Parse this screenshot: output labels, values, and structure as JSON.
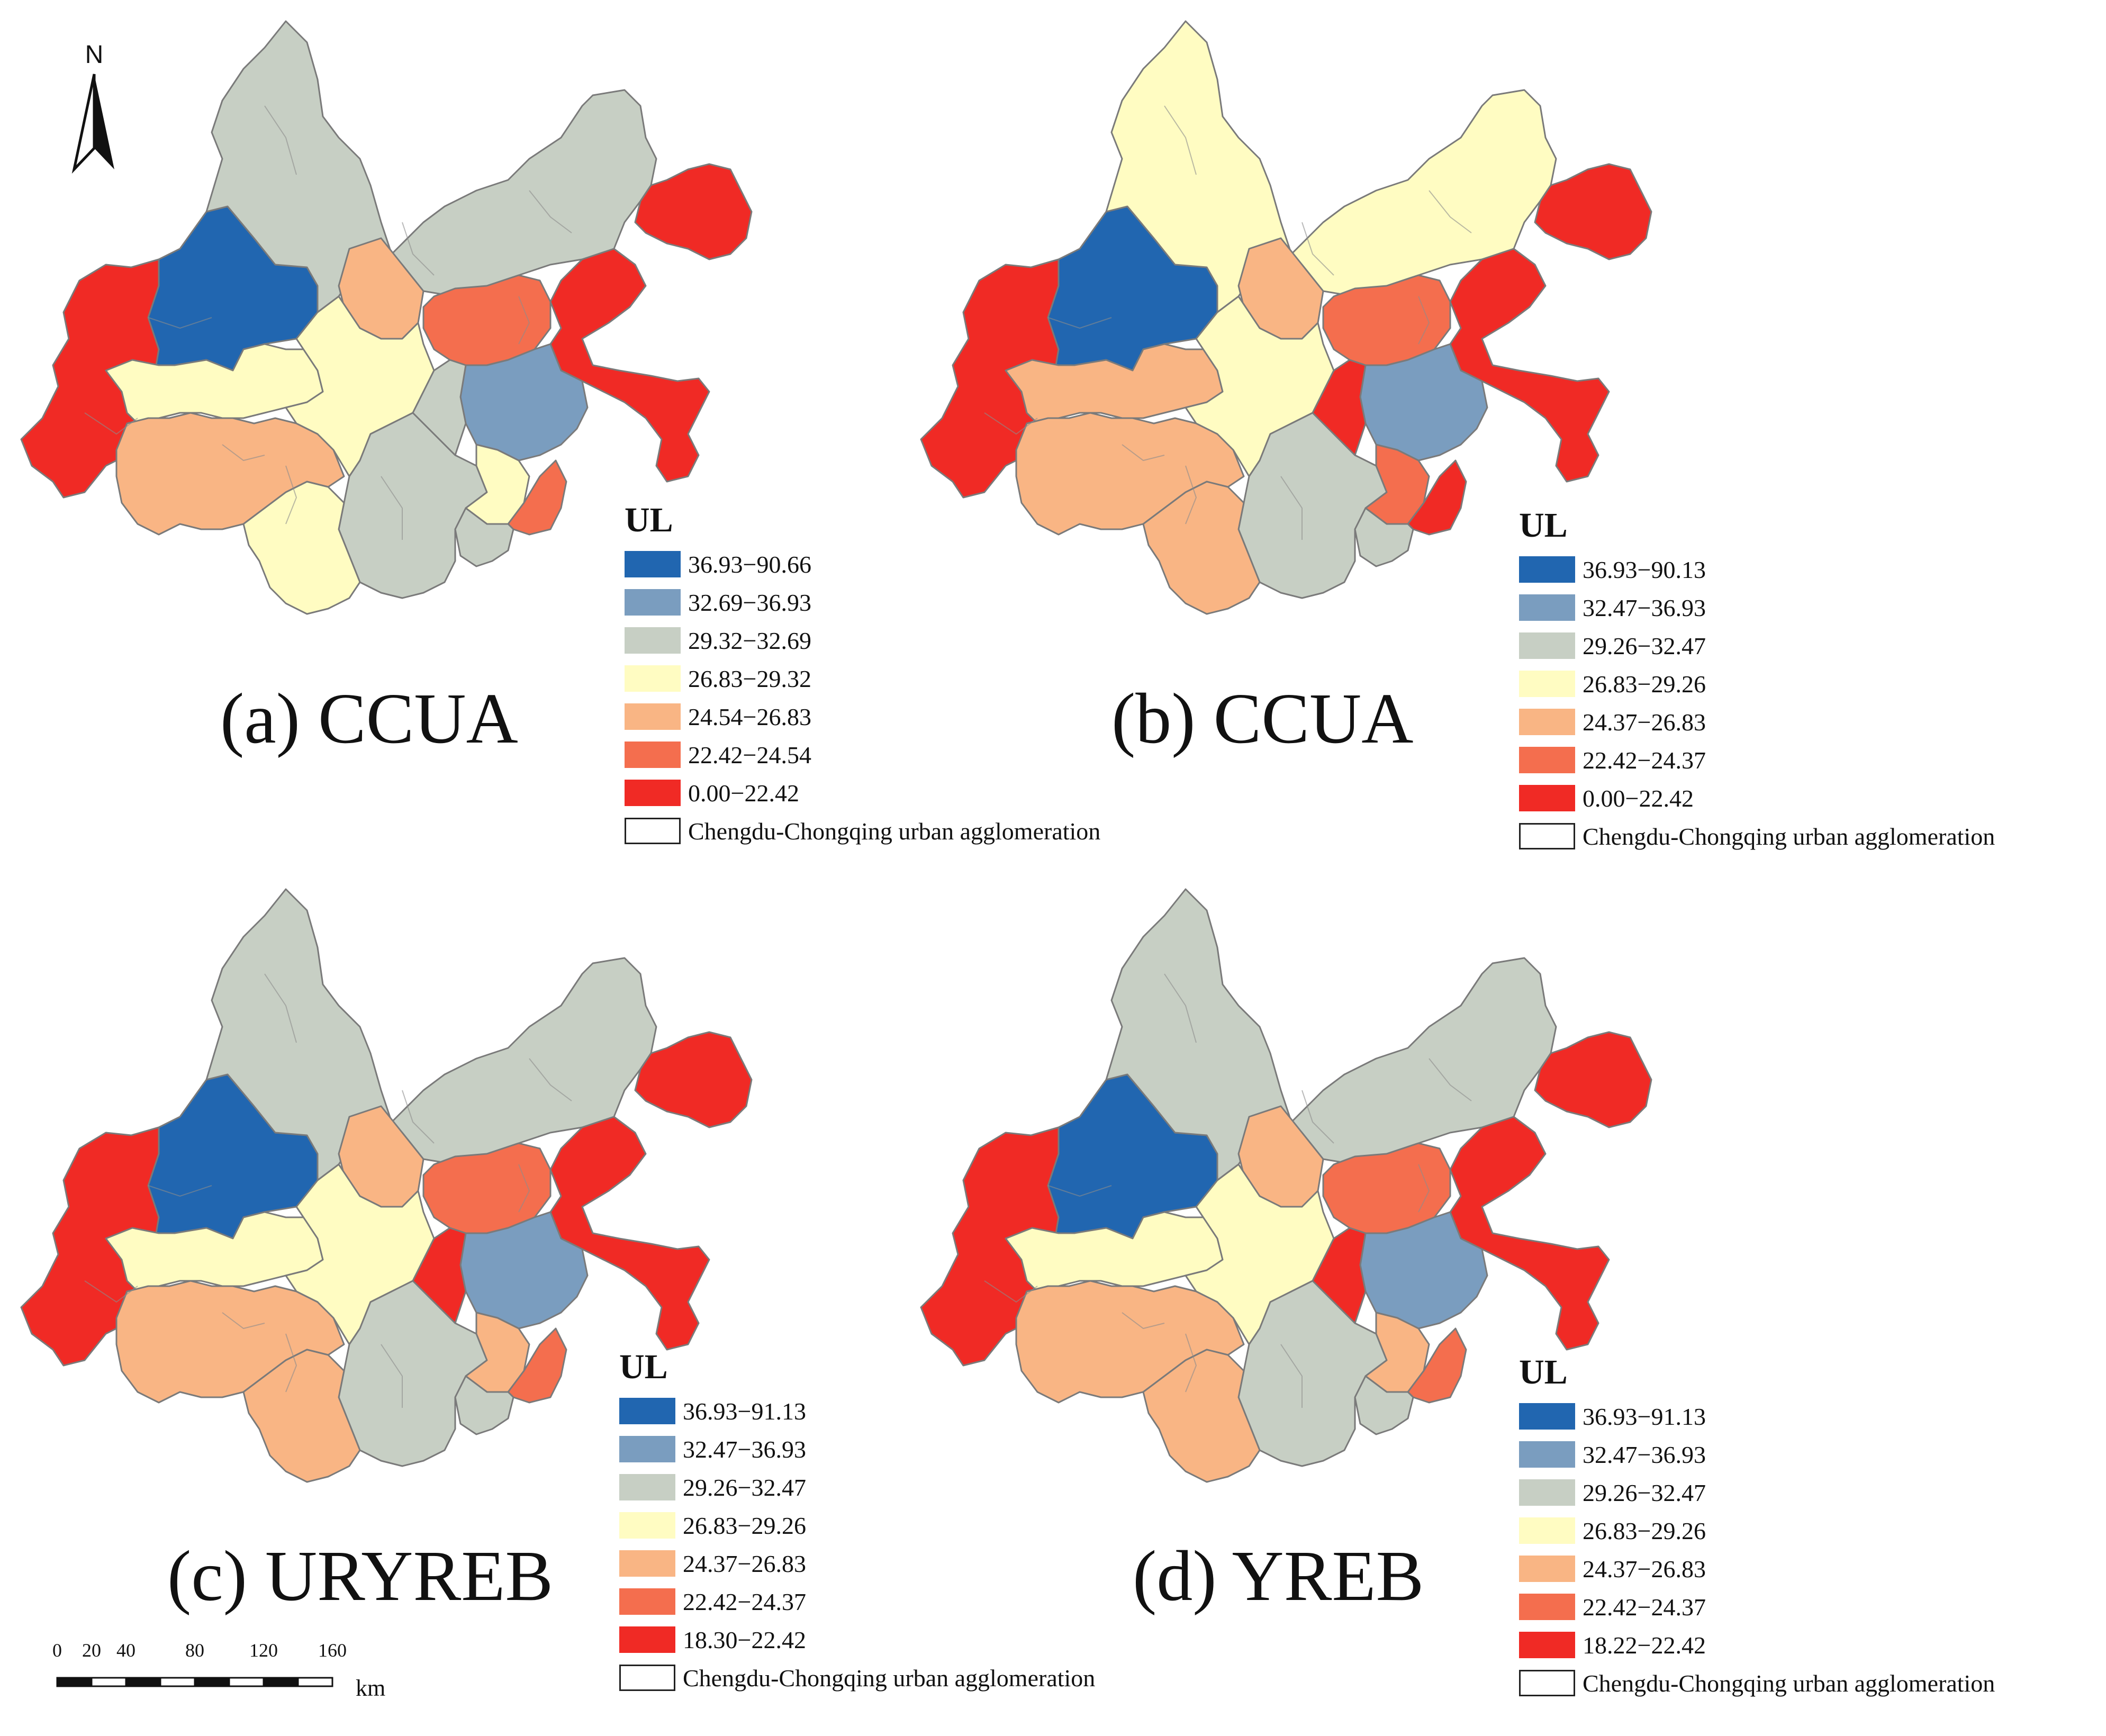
{
  "north": {
    "letter": "N",
    "icon": "north-arrow-icon"
  },
  "scale": {
    "ticks": [
      "0",
      "20",
      "40",
      "80",
      "120",
      "160"
    ],
    "tick_km": [
      0,
      20,
      40,
      80,
      120,
      160
    ],
    "unit": "km"
  },
  "colors": {
    "c1": "#2166b0",
    "c2": "#7a9dbf",
    "c3": "#c7cfc4",
    "c4": "#fffcc2",
    "c5": "#f9b584",
    "c6": "#f46e4e",
    "c7": "#f02a25"
  },
  "map_region_ids": [
    "W",
    "B",
    "N",
    "NE",
    "M1",
    "M2",
    "EF",
    "Q",
    "LW",
    "SW",
    "S",
    "SE",
    "C1",
    "C2",
    "C3",
    "C4",
    "SM"
  ],
  "panels": [
    {
      "id": "a",
      "caption": "(a) CCUA",
      "legend_title": "UL",
      "legend": [
        {
          "label": "36.93−90.66",
          "color": "#2166b0"
        },
        {
          "label": "32.69−36.93",
          "color": "#7a9dbf"
        },
        {
          "label": "29.32−32.69",
          "color": "#c7cfc4"
        },
        {
          "label": "26.83−29.32",
          "color": "#fffcc2"
        },
        {
          "label": "24.54−26.83",
          "color": "#f9b584"
        },
        {
          "label": "22.42−24.54",
          "color": "#f46e4e"
        },
        {
          "label": "0.00−22.42",
          "color": "#f02a25"
        }
      ],
      "boundary_label": "Chengdu-Chongqing urban agglomeration",
      "region_classes": {
        "W": 7,
        "B": 1,
        "N": 3,
        "NE": 7,
        "M1": 5,
        "M2": 6,
        "EF": 7,
        "Q": 2,
        "LW": 4,
        "SW": 5,
        "S": 4,
        "SE": 3,
        "C1": 4,
        "C2": 3,
        "C3": 4,
        "C4": 6,
        "SM": 3
      }
    },
    {
      "id": "b",
      "caption": "(b) CCUA",
      "legend_title": "UL",
      "legend": [
        {
          "label": "36.93−90.13",
          "color": "#2166b0"
        },
        {
          "label": "32.47−36.93",
          "color": "#7a9dbf"
        },
        {
          "label": "29.26−32.47",
          "color": "#c7cfc4"
        },
        {
          "label": "26.83−29.26",
          "color": "#fffcc2"
        },
        {
          "label": "24.37−26.83",
          "color": "#f9b584"
        },
        {
          "label": "22.42−24.37",
          "color": "#f46e4e"
        },
        {
          "label": "0.00−22.42",
          "color": "#f02a25"
        }
      ],
      "boundary_label": "Chengdu-Chongqing urban agglomeration",
      "region_classes": {
        "W": 7,
        "B": 1,
        "N": 4,
        "NE": 7,
        "M1": 5,
        "M2": 6,
        "EF": 7,
        "Q": 2,
        "LW": 5,
        "SW": 5,
        "S": 4,
        "SE": 3,
        "C1": 5,
        "C2": 7,
        "C3": 6,
        "C4": 7,
        "SM": 3
      }
    },
    {
      "id": "c",
      "caption": "(c) URYREB",
      "legend_title": "UL",
      "legend": [
        {
          "label": "36.93−91.13",
          "color": "#2166b0"
        },
        {
          "label": "32.47−36.93",
          "color": "#7a9dbf"
        },
        {
          "label": "29.26−32.47",
          "color": "#c7cfc4"
        },
        {
          "label": "26.83−29.26",
          "color": "#fffcc2"
        },
        {
          "label": "24.37−26.83",
          "color": "#f9b584"
        },
        {
          "label": "22.42−24.37",
          "color": "#f46e4e"
        },
        {
          "label": "18.30−22.42",
          "color": "#f02a25"
        }
      ],
      "boundary_label": "Chengdu-Chongqing urban agglomeration",
      "region_classes": {
        "W": 7,
        "B": 1,
        "N": 3,
        "NE": 7,
        "M1": 5,
        "M2": 6,
        "EF": 7,
        "Q": 2,
        "LW": 4,
        "SW": 5,
        "S": 4,
        "SE": 3,
        "C1": 5,
        "C2": 7,
        "C3": 5,
        "C4": 6,
        "SM": 3
      }
    },
    {
      "id": "d",
      "caption": "(d) YREB",
      "legend_title": "UL",
      "legend": [
        {
          "label": "36.93−91.13",
          "color": "#2166b0"
        },
        {
          "label": "32.47−36.93",
          "color": "#7a9dbf"
        },
        {
          "label": "29.26−32.47",
          "color": "#c7cfc4"
        },
        {
          "label": "26.83−29.26",
          "color": "#fffcc2"
        },
        {
          "label": "24.37−26.83",
          "color": "#f9b584"
        },
        {
          "label": "22.42−24.37",
          "color": "#f46e4e"
        },
        {
          "label": "18.22−22.42",
          "color": "#f02a25"
        }
      ],
      "boundary_label": "Chengdu-Chongqing urban agglomeration",
      "region_classes": {
        "W": 7,
        "B": 1,
        "N": 3,
        "NE": 7,
        "M1": 5,
        "M2": 6,
        "EF": 7,
        "Q": 2,
        "LW": 4,
        "SW": 5,
        "S": 4,
        "SE": 3,
        "C1": 5,
        "C2": 7,
        "C3": 5,
        "C4": 6,
        "SM": 3
      }
    }
  ]
}
